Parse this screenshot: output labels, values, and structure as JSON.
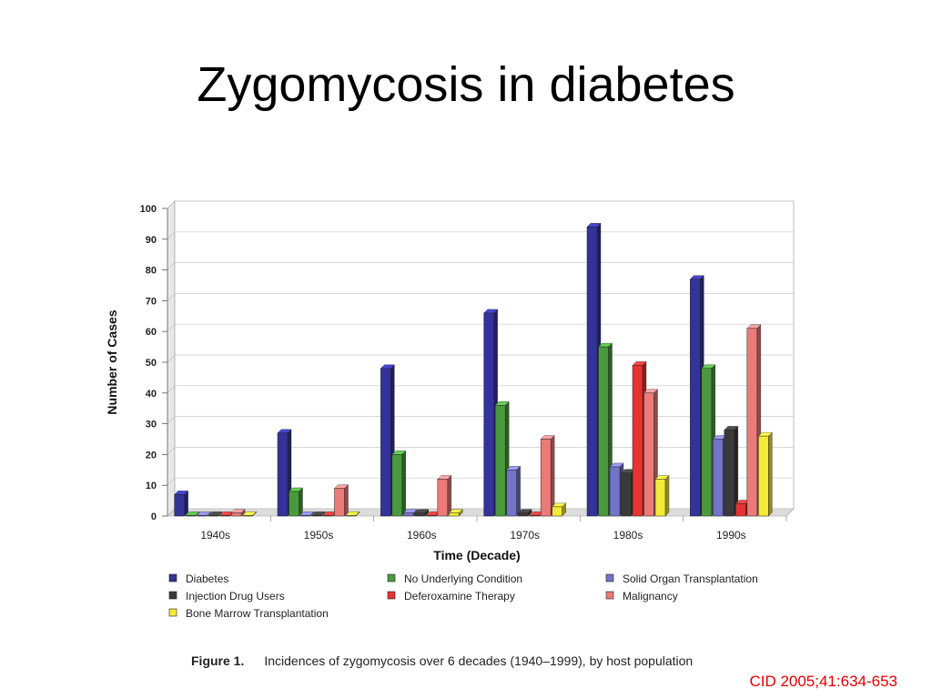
{
  "slide": {
    "title": "Zygomycosis in diabetes",
    "citation": "CID 2005;41:634-653"
  },
  "figure": {
    "label": "Figure 1.",
    "caption": "Incidences of zygomycosis over 6 decades (1940–1999), by host population"
  },
  "chart_data": {
    "type": "bar",
    "title": "",
    "xlabel": "Time (Decade)",
    "ylabel": "Number of Cases",
    "ylim": [
      0,
      100
    ],
    "yticks": [
      0,
      10,
      20,
      30,
      40,
      50,
      60,
      70,
      80,
      90,
      100
    ],
    "grid": true,
    "legend_position": "bottom",
    "categories": [
      "1940s",
      "1950s",
      "1960s",
      "1970s",
      "1980s",
      "1990s"
    ],
    "series": [
      {
        "name": "Diabetes",
        "color": "#33339a",
        "values": [
          7,
          27,
          48,
          66,
          94,
          77
        ]
      },
      {
        "name": "No Underlying Condition",
        "color": "#4a9a3d",
        "values": [
          0,
          8,
          20,
          36,
          55,
          48
        ]
      },
      {
        "name": "Solid Organ Transplantation",
        "color": "#7373c8",
        "values": [
          0,
          0,
          1,
          15,
          16,
          25
        ]
      },
      {
        "name": "Injection Drug Users",
        "color": "#3a3a3a",
        "values": [
          0,
          0,
          1,
          1,
          14,
          28
        ]
      },
      {
        "name": "Deferoxamine Therapy",
        "color": "#e63333",
        "values": [
          0,
          0,
          0,
          0,
          49,
          4
        ]
      },
      {
        "name": "Malignancy",
        "color": "#ec7a78",
        "values": [
          1,
          9,
          12,
          25,
          40,
          61
        ]
      },
      {
        "name": "Bone Marrow Transplantation",
        "color": "#f4ea38",
        "values": [
          0,
          0,
          1,
          3,
          12,
          26
        ]
      }
    ],
    "legend_order": [
      "Diabetes",
      "No Underlying Condition",
      "Solid Organ Transplantation",
      "Injection Drug Users",
      "Deferoxamine Therapy",
      "Malignancy",
      "Bone Marrow Transplantation"
    ]
  }
}
